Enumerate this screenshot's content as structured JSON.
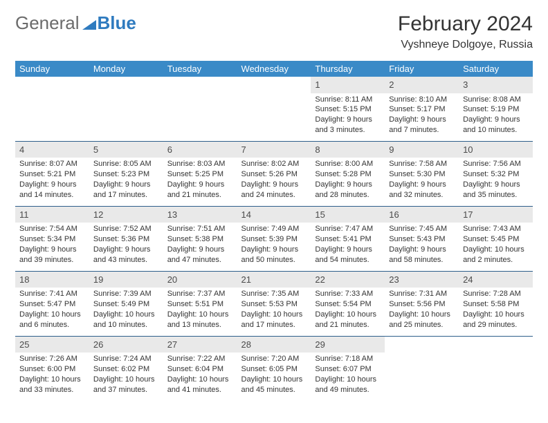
{
  "brand": {
    "part1": "General",
    "part2": "Blue"
  },
  "header": {
    "title": "February 2024",
    "location": "Vyshneye Dolgoye, Russia"
  },
  "colors": {
    "header_bg": "#3a8ac7",
    "header_text": "#ffffff",
    "border": "#2c5d8a",
    "shade": "#e9e9e9",
    "text": "#333333",
    "logo_gray": "#6b6b6b",
    "logo_blue": "#2f7bbf",
    "background": "#ffffff"
  },
  "fonts": {
    "title_size": 30,
    "location_size": 16,
    "header_size": 13,
    "cell_size": 11
  },
  "weekdays": [
    "Sunday",
    "Monday",
    "Tuesday",
    "Wednesday",
    "Thursday",
    "Friday",
    "Saturday"
  ],
  "weeks": [
    [
      null,
      null,
      null,
      null,
      {
        "n": "1",
        "sr": "8:11 AM",
        "ss": "5:15 PM",
        "dl": "9 hours and 3 minutes."
      },
      {
        "n": "2",
        "sr": "8:10 AM",
        "ss": "5:17 PM",
        "dl": "9 hours and 7 minutes."
      },
      {
        "n": "3",
        "sr": "8:08 AM",
        "ss": "5:19 PM",
        "dl": "9 hours and 10 minutes."
      }
    ],
    [
      {
        "n": "4",
        "sr": "8:07 AM",
        "ss": "5:21 PM",
        "dl": "9 hours and 14 minutes."
      },
      {
        "n": "5",
        "sr": "8:05 AM",
        "ss": "5:23 PM",
        "dl": "9 hours and 17 minutes."
      },
      {
        "n": "6",
        "sr": "8:03 AM",
        "ss": "5:25 PM",
        "dl": "9 hours and 21 minutes."
      },
      {
        "n": "7",
        "sr": "8:02 AM",
        "ss": "5:26 PM",
        "dl": "9 hours and 24 minutes."
      },
      {
        "n": "8",
        "sr": "8:00 AM",
        "ss": "5:28 PM",
        "dl": "9 hours and 28 minutes."
      },
      {
        "n": "9",
        "sr": "7:58 AM",
        "ss": "5:30 PM",
        "dl": "9 hours and 32 minutes."
      },
      {
        "n": "10",
        "sr": "7:56 AM",
        "ss": "5:32 PM",
        "dl": "9 hours and 35 minutes."
      }
    ],
    [
      {
        "n": "11",
        "sr": "7:54 AM",
        "ss": "5:34 PM",
        "dl": "9 hours and 39 minutes."
      },
      {
        "n": "12",
        "sr": "7:52 AM",
        "ss": "5:36 PM",
        "dl": "9 hours and 43 minutes."
      },
      {
        "n": "13",
        "sr": "7:51 AM",
        "ss": "5:38 PM",
        "dl": "9 hours and 47 minutes."
      },
      {
        "n": "14",
        "sr": "7:49 AM",
        "ss": "5:39 PM",
        "dl": "9 hours and 50 minutes."
      },
      {
        "n": "15",
        "sr": "7:47 AM",
        "ss": "5:41 PM",
        "dl": "9 hours and 54 minutes."
      },
      {
        "n": "16",
        "sr": "7:45 AM",
        "ss": "5:43 PM",
        "dl": "9 hours and 58 minutes."
      },
      {
        "n": "17",
        "sr": "7:43 AM",
        "ss": "5:45 PM",
        "dl": "10 hours and 2 minutes."
      }
    ],
    [
      {
        "n": "18",
        "sr": "7:41 AM",
        "ss": "5:47 PM",
        "dl": "10 hours and 6 minutes."
      },
      {
        "n": "19",
        "sr": "7:39 AM",
        "ss": "5:49 PM",
        "dl": "10 hours and 10 minutes."
      },
      {
        "n": "20",
        "sr": "7:37 AM",
        "ss": "5:51 PM",
        "dl": "10 hours and 13 minutes."
      },
      {
        "n": "21",
        "sr": "7:35 AM",
        "ss": "5:53 PM",
        "dl": "10 hours and 17 minutes."
      },
      {
        "n": "22",
        "sr": "7:33 AM",
        "ss": "5:54 PM",
        "dl": "10 hours and 21 minutes."
      },
      {
        "n": "23",
        "sr": "7:31 AM",
        "ss": "5:56 PM",
        "dl": "10 hours and 25 minutes."
      },
      {
        "n": "24",
        "sr": "7:28 AM",
        "ss": "5:58 PM",
        "dl": "10 hours and 29 minutes."
      }
    ],
    [
      {
        "n": "25",
        "sr": "7:26 AM",
        "ss": "6:00 PM",
        "dl": "10 hours and 33 minutes."
      },
      {
        "n": "26",
        "sr": "7:24 AM",
        "ss": "6:02 PM",
        "dl": "10 hours and 37 minutes."
      },
      {
        "n": "27",
        "sr": "7:22 AM",
        "ss": "6:04 PM",
        "dl": "10 hours and 41 minutes."
      },
      {
        "n": "28",
        "sr": "7:20 AM",
        "ss": "6:05 PM",
        "dl": "10 hours and 45 minutes."
      },
      {
        "n": "29",
        "sr": "7:18 AM",
        "ss": "6:07 PM",
        "dl": "10 hours and 49 minutes."
      },
      null,
      null
    ]
  ],
  "labels": {
    "sunrise": "Sunrise:",
    "sunset": "Sunset:",
    "daylight": "Daylight:"
  }
}
